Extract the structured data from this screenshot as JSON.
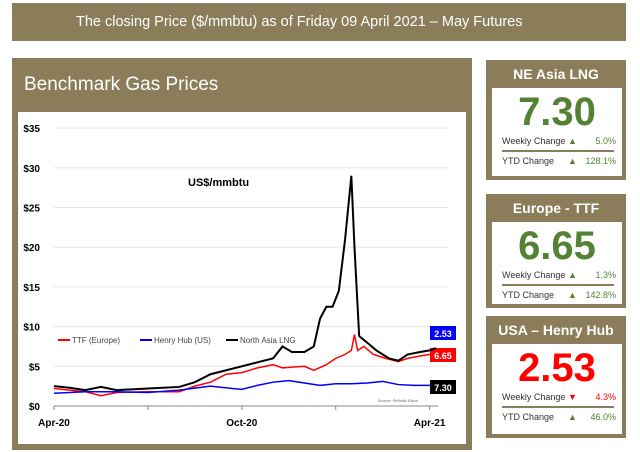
{
  "header": {
    "title": "The closing Price ($/mmbtu) as of  Friday 09 April 2021 – May Futures"
  },
  "cards": [
    {
      "title": "NE Asia LNG",
      "price": "7.30",
      "price_color": "#548235",
      "weekly_label": "Weekly Change",
      "weekly_dir": "▲",
      "weekly": "5.0%",
      "weekly_color": "#548235",
      "ytd_label": "YTD Change",
      "ytd_dir": "▲",
      "ytd": "128.1%",
      "ytd_color": "#548235"
    },
    {
      "title": "Europe - TTF",
      "price": "6.65",
      "price_color": "#548235",
      "weekly_label": "Weekly Change",
      "weekly_dir": "▲",
      "weekly": "1.3%",
      "weekly_color": "#548235",
      "ytd_label": "YTD Change",
      "ytd_dir": "▲",
      "ytd": "142.8%",
      "ytd_color": "#548235"
    },
    {
      "title": "USA – Henry Hub",
      "price": "2.53",
      "price_color": "#ff0000",
      "weekly_label": "Weekly Change",
      "weekly_dir": "▼",
      "weekly": "4.3%",
      "weekly_color": "#ff0000",
      "ytd_label": "YTD Change",
      "ytd_dir": "▲",
      "ytd": "46.0%",
      "ytd_color": "#548235"
    }
  ],
  "chart_data": {
    "type": "line",
    "title": "Benchmark Gas Prices",
    "annotation": "US$/mmbtu",
    "source": "Source: Refinitiv Eikon",
    "xlabel": "",
    "ylabel": "",
    "ylim": [
      0,
      35
    ],
    "yticks": [
      "$0",
      "$5",
      "$10",
      "$15",
      "$20",
      "$25",
      "$30",
      "$35"
    ],
    "xticks": [
      {
        "label": "Apr-20",
        "month": 0
      },
      {
        "label": "Oct-20",
        "month": 6
      },
      {
        "label": "Apr-21",
        "month": 12
      }
    ],
    "x_unit": "months since Apr-20",
    "series": [
      {
        "name": "TTF (Europe)",
        "color": "#ff0000",
        "end_label": "6.65",
        "x": [
          0,
          0.5,
          1,
          1.5,
          2,
          3,
          4,
          4.5,
          5,
          5.5,
          6,
          6.5,
          7,
          7.3,
          8,
          8.3,
          8.7,
          9,
          9.3,
          9.5,
          9.6,
          9.7,
          9.9,
          10.2,
          10.6,
          11,
          11.3,
          11.7,
          12,
          12.1
        ],
        "y": [
          2.2,
          2,
          1.8,
          1.3,
          1.7,
          1.8,
          1.8,
          2.5,
          3,
          4,
          4.2,
          4.8,
          5.2,
          4.8,
          5,
          4.5,
          5.2,
          6,
          6.5,
          7,
          9,
          7,
          7.5,
          6.5,
          6,
          5.6,
          6,
          6.3,
          6.5,
          6.65
        ]
      },
      {
        "name": "Henry Hub (US)",
        "color": "#0000ff",
        "end_label": "2.53",
        "x": [
          0,
          1,
          2,
          3,
          4,
          5,
          5.7,
          6,
          6.5,
          7,
          7.5,
          8,
          8.5,
          9,
          9.5,
          10,
          10.5,
          11,
          11.5,
          12,
          12.2
        ],
        "y": [
          1.6,
          1.8,
          1.8,
          1.7,
          2,
          2.5,
          2.2,
          2.1,
          2.6,
          3,
          3.2,
          2.9,
          2.6,
          2.8,
          2.8,
          2.9,
          3.1,
          2.7,
          2.6,
          2.6,
          2.53
        ]
      },
      {
        "name": "North Asia LNG",
        "color": "#000000",
        "end_label": "7.30",
        "x": [
          0,
          0.5,
          1,
          1.5,
          2,
          3,
          4,
          4.5,
          5,
          5.5,
          6,
          6.5,
          7,
          7.3,
          7.6,
          8,
          8.3,
          8.5,
          8.7,
          8.9,
          9.1,
          9.3,
          9.5,
          9.6,
          9.75,
          10,
          10.3,
          10.7,
          11,
          11.3,
          11.7,
          12,
          12.2
        ],
        "y": [
          2.5,
          2.3,
          2,
          2.4,
          2,
          2.2,
          2.4,
          3,
          4,
          4.5,
          5,
          5.5,
          6,
          7.5,
          6.8,
          6.8,
          7.5,
          11,
          12.5,
          12.5,
          14.5,
          21,
          29,
          20,
          8.8,
          8,
          7,
          6,
          5.7,
          6.5,
          6.8,
          7,
          7.3
        ]
      }
    ],
    "legend": "lower-left"
  }
}
